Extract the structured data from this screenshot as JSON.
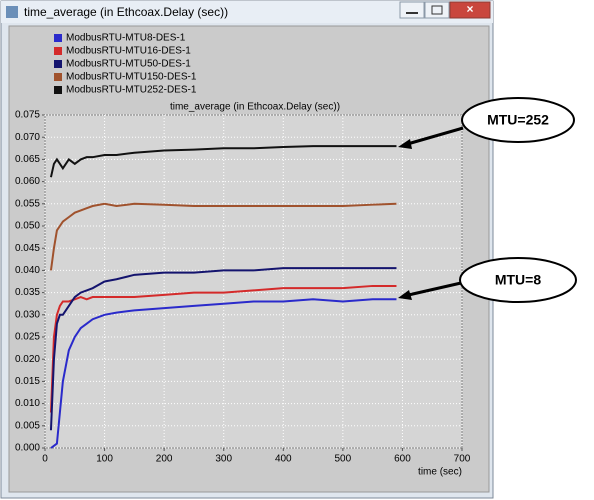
{
  "window": {
    "title": "time_average (in Ethcoax.Delay (sec))"
  },
  "chart_data": {
    "type": "line",
    "title": "time_average (in Ethcoax.Delay (sec))",
    "x_label": "time (sec)",
    "x": [
      10,
      15,
      20,
      25,
      30,
      40,
      50,
      60,
      70,
      80,
      100,
      120,
      150,
      200,
      250,
      300,
      350,
      400,
      450,
      500,
      550,
      590
    ],
    "series": [
      {
        "name": "ModbusRTU-MTU8-DES-1",
        "color": "#2a2acb",
        "values": [
          0.0,
          0.0005,
          0.001,
          0.008,
          0.015,
          0.022,
          0.025,
          0.027,
          0.028,
          0.029,
          0.03,
          0.0305,
          0.031,
          0.0315,
          0.032,
          0.0325,
          0.033,
          0.033,
          0.0335,
          0.033,
          0.0335,
          0.0335
        ]
      },
      {
        "name": "ModbusRTU-MTU16-DES-1",
        "color": "#d42a2a",
        "values": [
          0.008,
          0.025,
          0.03,
          0.032,
          0.033,
          0.033,
          0.0335,
          0.034,
          0.0335,
          0.034,
          0.034,
          0.034,
          0.034,
          0.0345,
          0.035,
          0.035,
          0.0355,
          0.036,
          0.036,
          0.036,
          0.0365,
          0.0365
        ]
      },
      {
        "name": "ModbusRTU-MTU50-DES-1",
        "color": "#14146e",
        "values": [
          0.004,
          0.02,
          0.028,
          0.03,
          0.03,
          0.032,
          0.034,
          0.035,
          0.0355,
          0.036,
          0.0375,
          0.038,
          0.039,
          0.0395,
          0.0395,
          0.04,
          0.04,
          0.0405,
          0.0405,
          0.0405,
          0.0405,
          0.0405
        ]
      },
      {
        "name": "ModbusRTU-MTU150-DES-1",
        "color": "#a0522d",
        "values": [
          0.04,
          0.045,
          0.049,
          0.05,
          0.051,
          0.052,
          0.053,
          0.0535,
          0.054,
          0.0545,
          0.055,
          0.0545,
          0.055,
          0.0548,
          0.0545,
          0.0545,
          0.0545,
          0.0545,
          0.0545,
          0.0545,
          0.0548,
          0.055
        ]
      },
      {
        "name": "ModbusRTU-MTU252-DES-1",
        "color": "#111111",
        "values": [
          0.061,
          0.064,
          0.065,
          0.064,
          0.063,
          0.065,
          0.064,
          0.065,
          0.0655,
          0.0655,
          0.066,
          0.066,
          0.0665,
          0.067,
          0.0672,
          0.0675,
          0.0675,
          0.0678,
          0.068,
          0.068,
          0.068,
          0.068
        ]
      }
    ],
    "xlim": [
      0,
      700
    ],
    "xticks": [
      0,
      100,
      200,
      300,
      400,
      500,
      600,
      700
    ],
    "ylim": [
      0,
      0.075
    ],
    "yticks": [
      {
        "value": 0,
        "label": "0.000"
      },
      0.005,
      {
        "value": 0.01,
        "label": "0.010"
      },
      0.015,
      {
        "value": 0.02,
        "label": "0.020"
      },
      0.025,
      {
        "value": 0.03,
        "label": "0.030"
      },
      0.035,
      {
        "value": 0.04,
        "label": "0.040"
      },
      0.045,
      {
        "value": 0.05,
        "label": "0.050"
      },
      0.055,
      {
        "value": 0.06,
        "label": "0.060"
      },
      0.065,
      {
        "value": 0.07,
        "label": "0.070"
      },
      0.075
    ],
    "grid": true,
    "annotations": [
      "MTU=252",
      "MTU=8"
    ]
  }
}
